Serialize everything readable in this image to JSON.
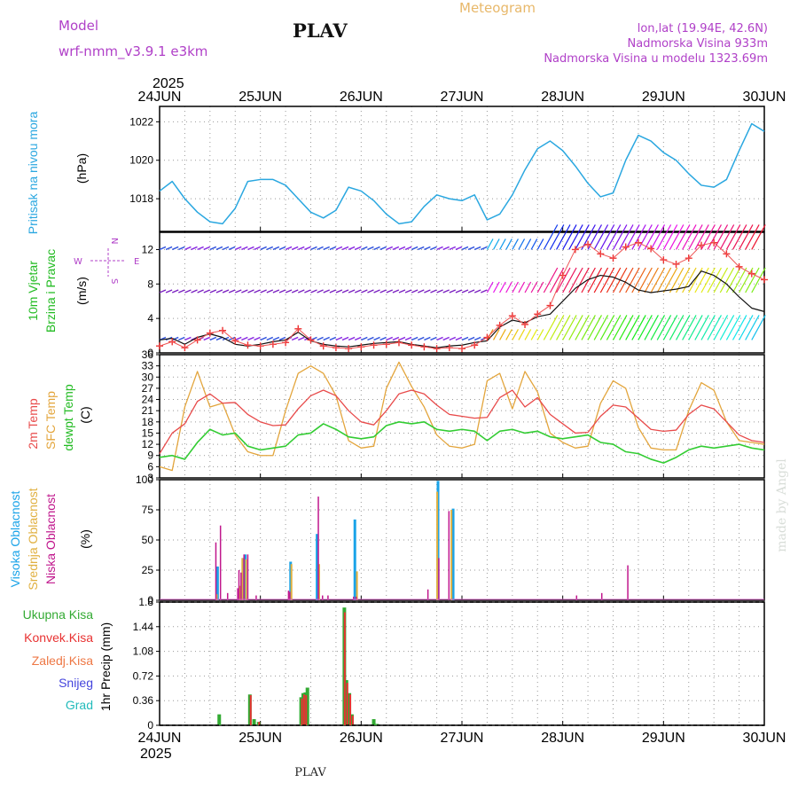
{
  "header": {
    "model_label": "Model",
    "model_name": "wrf-nmm_v3.9.1 e3km",
    "station": "PLAV",
    "title": "Meteogram",
    "lonlat": "lon,lat (19.94E, 42.6N)",
    "altitude": "Nadmorska Visina 933m",
    "model_altitude": "Nadmorska Visina u modelu 1323.69m",
    "footer_station": "PLAV",
    "watermark": "made by Angel"
  },
  "x_axis": {
    "year_top": "2025",
    "year_bottom": "2025",
    "dates": [
      "24JUN",
      "25JUN",
      "26JUN",
      "27JUN",
      "28JUN",
      "29JUN",
      "30JUN"
    ]
  },
  "colors": {
    "pressure": "#2aa7e0",
    "temp": "#e84a4a",
    "sfc": "#e3a53c",
    "dew": "#33cc33",
    "high_cloud": "#1aa3e8",
    "mid_cloud": "#e0b040",
    "low_cloud": "#c0168c",
    "total_rain": "#33aa33",
    "conv_rain": "#e83232",
    "wind_label": "#b040c8"
  },
  "chart_data": [
    {
      "type": "line",
      "title": "Pritisak na nivou mora",
      "ylabel": "(hPa)",
      "ylim": [
        1016.3,
        1022.8
      ],
      "yticks": [
        "1018",
        "1020",
        "1022"
      ],
      "xlim": [
        0,
        144
      ],
      "series": [
        {
          "name": "MSLP",
          "x": [
            0,
            3,
            6,
            9,
            12,
            15,
            18,
            21,
            24,
            27,
            30,
            33,
            36,
            39,
            42,
            45,
            48,
            51,
            54,
            57,
            60,
            63,
            66,
            69,
            72,
            75,
            78,
            81,
            84,
            87,
            90,
            93,
            96,
            99,
            102,
            105,
            108,
            111,
            114,
            117,
            120,
            123,
            126,
            129,
            132,
            135,
            138,
            141,
            144
          ],
          "values": [
            1018.4,
            1018.9,
            1018.0,
            1017.3,
            1016.8,
            1016.7,
            1017.5,
            1018.9,
            1019.0,
            1019.0,
            1018.7,
            1018.0,
            1017.3,
            1017.0,
            1017.4,
            1018.6,
            1018.4,
            1017.9,
            1017.2,
            1016.7,
            1016.8,
            1017.6,
            1018.2,
            1018.0,
            1017.9,
            1018.2,
            1016.9,
            1017.2,
            1018.2,
            1019.5,
            1020.6,
            1021.0,
            1020.5,
            1019.7,
            1018.8,
            1018.1,
            1018.3,
            1020.0,
            1021.3,
            1021.0,
            1020.4,
            1020.0,
            1019.3,
            1018.7,
            1018.6,
            1019.0,
            1020.5,
            1021.9,
            1021.5
          ]
        }
      ]
    },
    {
      "type": "line",
      "title": "10m Vjetar Brzina i Pravac",
      "ylabel": "(m/s)",
      "ylim": [
        0,
        14
      ],
      "yticks": [
        "0",
        "4",
        "8",
        "12"
      ],
      "compass": {
        "w": "W",
        "e": "E",
        "n": "N",
        "s": "S"
      },
      "levels": [
        12,
        7,
        1.5
      ],
      "series": [
        {
          "name": "wind speed",
          "x": [
            0,
            3,
            6,
            9,
            12,
            15,
            18,
            21,
            24,
            27,
            30,
            33,
            36,
            39,
            42,
            45,
            48,
            51,
            54,
            57,
            60,
            63,
            66,
            69,
            72,
            75,
            78,
            81,
            84,
            87,
            90,
            93,
            96,
            99,
            102,
            105,
            108,
            111,
            114,
            117,
            120,
            123,
            126,
            129,
            132,
            135,
            138,
            141,
            144
          ],
          "values": [
            1.5,
            1.7,
            1.0,
            1.8,
            2.2,
            1.8,
            1.0,
            0.8,
            1.0,
            1.3,
            1.5,
            2.4,
            1.4,
            1.0,
            0.8,
            0.7,
            0.9,
            1.1,
            1.2,
            1.3,
            1.0,
            0.8,
            0.6,
            0.8,
            0.9,
            1.2,
            1.4,
            3.0,
            3.8,
            3.5,
            4.2,
            4.5,
            6.0,
            7.5,
            8.5,
            9.0,
            8.8,
            8.2,
            7.3,
            7.0,
            7.2,
            7.4,
            7.7,
            9.5,
            9.0,
            8.0,
            6.5,
            5.2,
            4.8
          ]
        },
        {
          "name": "gust",
          "x": [
            0,
            3,
            6,
            9,
            12,
            15,
            18,
            21,
            24,
            27,
            30,
            33,
            36,
            39,
            42,
            45,
            48,
            51,
            54,
            57,
            60,
            63,
            66,
            69,
            72,
            75,
            78,
            81,
            84,
            87,
            90,
            93,
            96,
            99,
            102,
            105,
            108,
            111,
            114,
            117,
            120,
            123,
            126,
            129,
            132,
            135,
            138,
            141,
            144
          ],
          "values": [
            0.8,
            1.3,
            0.6,
            1.5,
            2.3,
            2.6,
            1.4,
            0.9,
            0.8,
            1.0,
            1.2,
            2.8,
            1.5,
            0.8,
            0.6,
            0.5,
            0.7,
            0.9,
            1.0,
            1.2,
            0.9,
            0.7,
            0.5,
            0.6,
            0.5,
            0.9,
            1.8,
            3.2,
            4.3,
            3.3,
            4.5,
            5.5,
            9.0,
            12.0,
            12.6,
            11.5,
            11.0,
            12.3,
            12.8,
            12.1,
            10.8,
            10.3,
            11.0,
            12.5,
            12.8,
            11.5,
            10.0,
            9.2,
            8.5
          ]
        }
      ]
    },
    {
      "type": "line",
      "title": "2m Temp / SFC Temp / dewpt Temp",
      "ylabel": "(C)",
      "ylim": [
        3,
        36
      ],
      "yticks": [
        "3",
        "6",
        "9",
        "12",
        "15",
        "18",
        "21",
        "24",
        "27",
        "30",
        "33",
        "36"
      ],
      "series": [
        {
          "name": "2m Temp",
          "x": [
            0,
            3,
            6,
            9,
            12,
            15,
            18,
            21,
            24,
            27,
            30,
            33,
            36,
            39,
            42,
            45,
            48,
            51,
            54,
            57,
            60,
            63,
            66,
            69,
            72,
            75,
            78,
            81,
            84,
            87,
            90,
            93,
            96,
            99,
            102,
            105,
            108,
            111,
            114,
            117,
            120,
            123,
            126,
            129,
            132,
            135,
            138,
            141,
            144
          ],
          "values": [
            9.5,
            15.0,
            17.5,
            23.5,
            25.5,
            23.0,
            23.2,
            20.0,
            18.0,
            17.0,
            17.2,
            21.5,
            25.0,
            26.5,
            25.0,
            21.0,
            18.0,
            17.2,
            21.0,
            25.5,
            26.5,
            25.5,
            22.5,
            20.0,
            19.5,
            19.0,
            19.2,
            24.5,
            26.5,
            22.0,
            24.5,
            20.0,
            17.5,
            15.0,
            15.2,
            19.5,
            22.5,
            22.0,
            19.0,
            16.0,
            15.5,
            15.8,
            20.0,
            22.5,
            21.5,
            18.0,
            14.5,
            13.0,
            12.5
          ]
        },
        {
          "name": "SFC Temp",
          "x": [
            0,
            3,
            6,
            9,
            12,
            15,
            18,
            21,
            24,
            27,
            30,
            33,
            36,
            39,
            42,
            45,
            48,
            51,
            54,
            57,
            60,
            63,
            66,
            69,
            72,
            75,
            78,
            81,
            84,
            87,
            90,
            93,
            96,
            99,
            102,
            105,
            108,
            111,
            114,
            117,
            120,
            123,
            126,
            129,
            132,
            135,
            138,
            141,
            144
          ],
          "values": [
            6.0,
            5.0,
            22.0,
            31.5,
            22.0,
            23.0,
            14.5,
            10.0,
            9.0,
            9.0,
            21.0,
            31.0,
            33.0,
            31.0,
            25.0,
            13.0,
            11.0,
            11.5,
            27.0,
            34.0,
            27.5,
            22.0,
            14.5,
            11.5,
            11.0,
            12.0,
            29.0,
            31.0,
            21.5,
            31.5,
            26.0,
            15.0,
            12.5,
            11.0,
            11.5,
            23.0,
            29.0,
            27.0,
            16.5,
            11.0,
            10.5,
            10.5,
            21.0,
            28.5,
            26.5,
            18.0,
            13.0,
            12.5,
            12.0
          ]
        },
        {
          "name": "dewpt Temp",
          "x": [
            0,
            3,
            6,
            9,
            12,
            15,
            18,
            21,
            24,
            27,
            30,
            33,
            36,
            39,
            42,
            45,
            48,
            51,
            54,
            57,
            60,
            63,
            66,
            69,
            72,
            75,
            78,
            81,
            84,
            87,
            90,
            93,
            96,
            99,
            102,
            105,
            108,
            111,
            114,
            117,
            120,
            123,
            126,
            129,
            132,
            135,
            138,
            141,
            144
          ],
          "values": [
            8.5,
            9.0,
            8.0,
            12.5,
            16.0,
            14.5,
            15.0,
            11.5,
            10.5,
            11.0,
            11.5,
            14.5,
            15.0,
            17.5,
            16.0,
            14.0,
            13.5,
            14.0,
            17.0,
            18.0,
            17.5,
            18.0,
            16.0,
            15.5,
            16.0,
            15.5,
            13.0,
            15.5,
            16.0,
            15.0,
            15.5,
            14.0,
            13.5,
            14.0,
            14.5,
            12.5,
            12.0,
            10.0,
            9.5,
            8.0,
            7.0,
            8.5,
            10.5,
            11.5,
            11.0,
            11.5,
            12.0,
            11.0,
            10.5
          ]
        }
      ]
    },
    {
      "type": "bar",
      "title": "Visoka / Srednja / Niska Oblacnost",
      "ylabel": "(%)",
      "ylim": [
        0,
        100
      ],
      "yticks": [
        "0",
        "25",
        "50",
        "75",
        "100"
      ],
      "series": [
        {
          "name": "Visoka Oblacnost",
          "x": [
            13.8,
            19.5,
            19.9,
            20.4,
            31.2,
            37.5,
            46.5,
            66.3,
            69.9
          ],
          "values": [
            28,
            8,
            35,
            38,
            32,
            55,
            67,
            99,
            76
          ]
        },
        {
          "name": "Srednja Oblacnost",
          "x": [
            13.6,
            19.2,
            19.7,
            20.6,
            31.4,
            38.0,
            47.0,
            66.1,
            69.5
          ],
          "values": [
            5,
            12,
            35,
            34,
            30,
            30,
            24,
            90,
            75
          ]
        },
        {
          "name": "Niska Oblacnost",
          "x": [
            13.4,
            14.5,
            16.2,
            18.6,
            18.9,
            19.4,
            20.1,
            21.0,
            23.0,
            30.7,
            31.0,
            37.8,
            38.8,
            40.1,
            46.2,
            46.8,
            63.9,
            66.5,
            68.9,
            99.3,
            105.3,
            111.5
          ],
          "values": [
            48,
            62,
            6,
            10,
            25,
            23,
            38,
            38,
            4,
            8,
            7,
            86,
            4,
            4,
            3,
            3,
            9,
            35,
            74,
            4,
            6,
            29
          ]
        }
      ]
    },
    {
      "type": "bar",
      "title": "1hr Precip",
      "ylabel": "(mm)",
      "ylim": [
        0,
        1.8
      ],
      "yticks": [
        "0",
        "0.36",
        "0.72",
        "1.08",
        "1.44",
        "1.8"
      ],
      "legend": [
        "Ukupna Kisa",
        "Konvek.Kisa",
        "Zaledj.Kisa",
        "Snijeg",
        "Grad"
      ],
      "series": [
        {
          "name": "Ukupna Kisa",
          "x": [
            14.2,
            21.5,
            22.5,
            23.6,
            33.7,
            34.2,
            34.7,
            35.2,
            44.0,
            44.5,
            45.2,
            45.8,
            51.0,
            51.8
          ],
          "values": [
            0.16,
            0.45,
            0.09,
            0.05,
            0.41,
            0.47,
            0.48,
            0.55,
            1.72,
            0.66,
            0.47,
            0.16,
            0.09,
            0.02
          ]
        },
        {
          "name": "Konvek.Kisa",
          "x": [
            21.7,
            23.7,
            33.9,
            34.4,
            34.9,
            44.1,
            44.7,
            45.4,
            46.0
          ],
          "values": [
            0.44,
            0.05,
            0.39,
            0.45,
            0.44,
            1.65,
            0.62,
            0.45,
            0.14
          ]
        }
      ]
    }
  ]
}
